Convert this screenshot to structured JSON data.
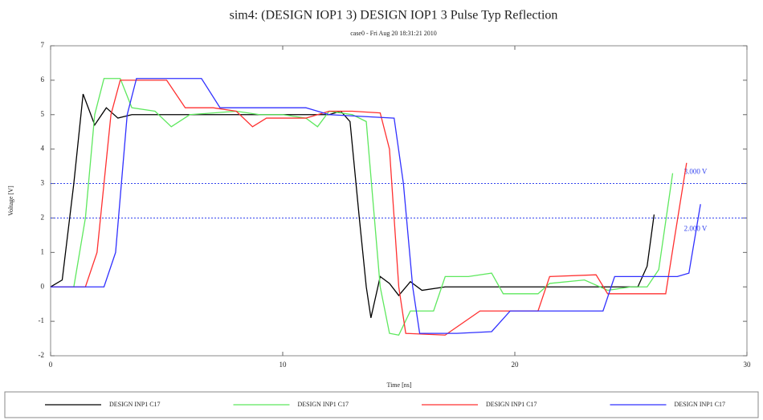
{
  "chart_data": {
    "type": "line",
    "title": "sim4: (DESIGN IOP1 3) DESIGN IOP1 3 Pulse Typ Reflection",
    "subtitle": "case0 - Fri Aug 20 18:31:21 2010",
    "x_label": "Time [ns]",
    "y_label": "Voltage [V]",
    "xlim": [
      0,
      30
    ],
    "xticks": [
      0,
      10,
      20,
      30
    ],
    "ylim": [
      -2,
      7
    ],
    "yticks": [
      -2,
      -1,
      0,
      1,
      2,
      3,
      4,
      5,
      6,
      7
    ],
    "hlines": [
      {
        "value": 3,
        "label": "3.000 V"
      },
      {
        "value": 2,
        "label": "2.000 V"
      }
    ],
    "hline_color": "#3344ee",
    "series": [
      {
        "name": "DESIGN INP1 C17",
        "color": "#000000",
        "x": [
          0,
          0.5,
          1,
          1.4,
          1.9,
          2.4,
          2.9,
          3.5,
          12,
          12.5,
          12.9,
          13.3,
          13.6,
          13.8,
          14.2,
          14.6,
          15,
          15.5,
          16,
          17,
          25.3,
          25.7,
          26
        ],
        "values": [
          0,
          0.2,
          3,
          5.6,
          4.7,
          5.2,
          4.9,
          5.0,
          5.0,
          5.1,
          4.8,
          2,
          0,
          -0.9,
          0.3,
          0.1,
          -0.25,
          0.15,
          -0.1,
          0,
          0,
          0.6,
          2.1
        ]
      },
      {
        "name": "DESIGN INP1 C17",
        "color": "#5ee85e",
        "x": [
          0,
          1,
          1.5,
          1.9,
          2.3,
          3,
          3.5,
          4.5,
          5.2,
          6,
          8,
          9,
          10,
          11,
          11.5,
          12,
          13,
          13.6,
          14.2,
          14.6,
          15,
          15.5,
          16.5,
          17,
          18,
          19,
          19.5,
          21,
          21.5,
          23,
          24,
          25,
          25.7,
          26.2,
          26.8
        ],
        "values": [
          0,
          0,
          2,
          5,
          6.05,
          6.05,
          5.2,
          5.1,
          4.65,
          5.0,
          5.1,
          5.0,
          5.0,
          4.9,
          4.65,
          5.1,
          5.0,
          4.8,
          0,
          -1.35,
          -1.4,
          -0.7,
          -0.7,
          0.3,
          0.3,
          0.4,
          -0.2,
          -0.2,
          0.1,
          0.2,
          -0.1,
          0,
          0,
          0.5,
          3.3
        ]
      },
      {
        "name": "DESIGN INP1 C17",
        "color": "#ff3030",
        "x": [
          0,
          1.5,
          2,
          2.6,
          3,
          5,
          5.8,
          7,
          8,
          8.7,
          9.3,
          11,
          12,
          13,
          14.2,
          14.6,
          15,
          15.3,
          17,
          18.5,
          21,
          21.5,
          23.5,
          24,
          26.5,
          26.9,
          27.4
        ],
        "values": [
          0,
          0,
          1,
          5,
          6.0,
          6.0,
          5.2,
          5.2,
          5.1,
          4.65,
          4.9,
          4.9,
          5.1,
          5.1,
          5.05,
          4.0,
          0,
          -1.35,
          -1.4,
          -0.7,
          -0.7,
          0.3,
          0.35,
          -0.2,
          -0.2,
          1.5,
          3.6
        ]
      },
      {
        "name": "DESIGN INP1 C17",
        "color": "#3030ff",
        "x": [
          0,
          2.3,
          2.8,
          3.3,
          3.7,
          6.5,
          7.3,
          11,
          12,
          14.8,
          15.2,
          15.6,
          15.9,
          17.5,
          19,
          19.8,
          23.8,
          24.3,
          27,
          27.5,
          28
        ],
        "values": [
          0,
          0,
          1,
          5,
          6.05,
          6.05,
          5.2,
          5.2,
          5.0,
          4.9,
          3,
          0,
          -1.35,
          -1.35,
          -1.3,
          -0.7,
          -0.7,
          0.3,
          0.3,
          0.4,
          2.4
        ]
      }
    ]
  }
}
